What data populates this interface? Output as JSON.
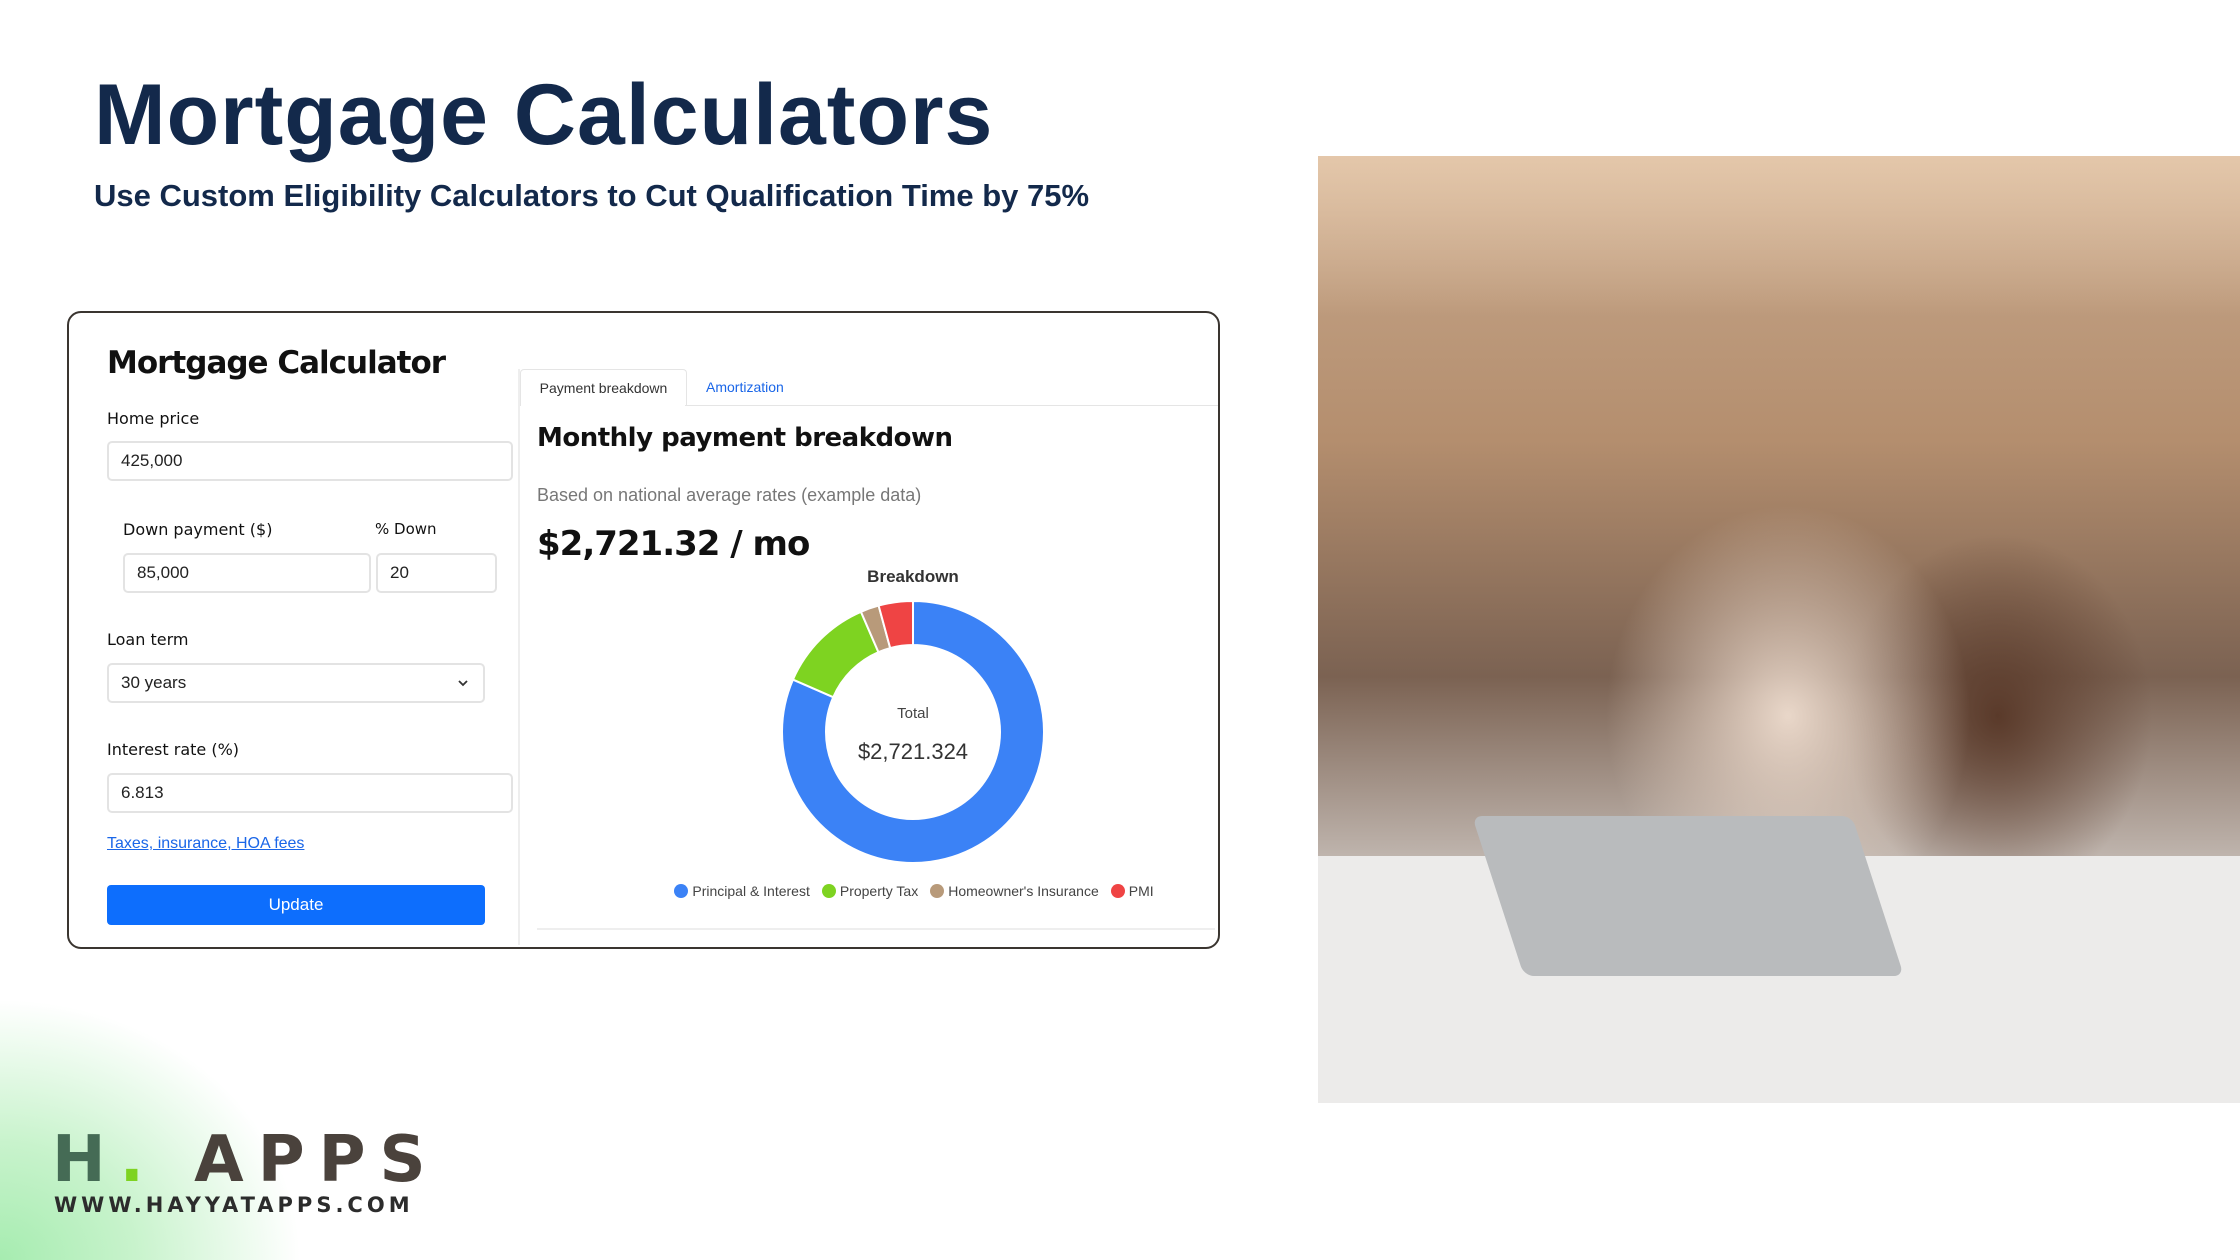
{
  "header": {
    "title": "Mortgage Calculators",
    "subtitle": "Use Custom Eligibility Calculators to Cut Qualification Time by 75%"
  },
  "calculator": {
    "title": "Mortgage Calculator",
    "home_price_label": "Home price",
    "home_price_value": "425,000",
    "down_payment_label": "Down payment ($)",
    "down_payment_value": "85,000",
    "percent_down_label": "% Down",
    "percent_down_value": "20",
    "loan_term_label": "Loan term",
    "loan_term_value": "30 years",
    "interest_rate_label": "Interest rate (%)",
    "interest_rate_value": "6.813",
    "fees_link": "Taxes, insurance, HOA fees",
    "update_label": "Update"
  },
  "results": {
    "tabs": [
      {
        "label": "Payment breakdown",
        "active": true
      },
      {
        "label": "Amortization",
        "active": false
      }
    ],
    "heading": "Monthly payment breakdown",
    "note": "Based on national average rates (example data)",
    "monthly_payment": "$2,721.32 / mo",
    "chart_title": "Breakdown",
    "center_label": "Total",
    "center_value": "$2,721.324"
  },
  "chart_data": {
    "type": "pie",
    "variant": "donut",
    "title": "Breakdown",
    "legend_position": "bottom",
    "categories": [
      "Principal & Interest",
      "Property Tax",
      "Homeowner's Insurance",
      "PMI"
    ],
    "values": [
      2219.32,
      325,
      62,
      115
    ],
    "colors": [
      "#3b82f6",
      "#7ed321",
      "#b89a7a",
      "#ef4444"
    ]
  },
  "brand": {
    "logo_text": "H. APPS",
    "url": "WWW.HAYYATAPPS.COM",
    "accent": "#7ed321"
  }
}
